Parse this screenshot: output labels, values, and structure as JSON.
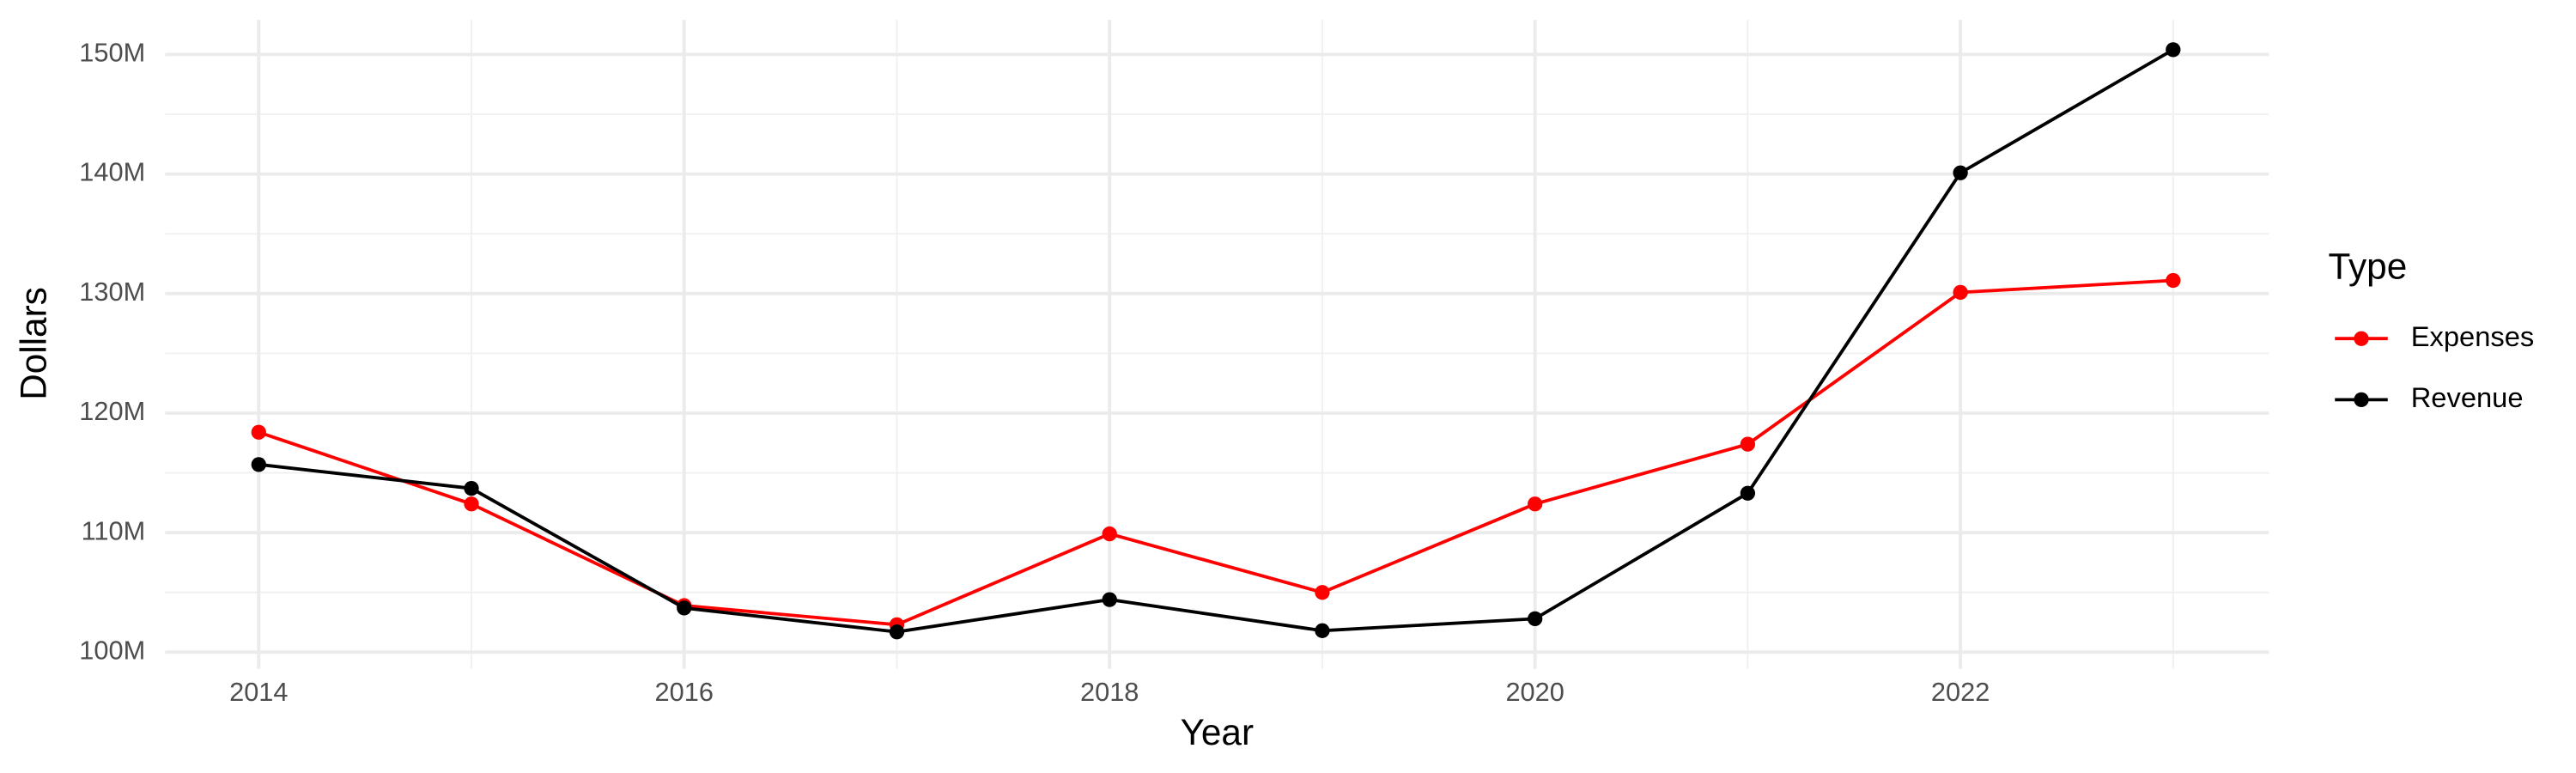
{
  "chart_data": {
    "type": "line",
    "x_label": "Year",
    "y_label": "Dollars",
    "legend_title": "Type",
    "legend_position": "right",
    "grid": true,
    "x": [
      2014,
      2015,
      2016,
      2017,
      2018,
      2019,
      2020,
      2021,
      2022,
      2023
    ],
    "xlim": [
      2013.56,
      2023.45
    ],
    "xticks": [
      2014,
      2016,
      2018,
      2020,
      2022
    ],
    "ylim": [
      98600000,
      152900000
    ],
    "yticks": [
      {
        "value": 100000000,
        "label": "100M"
      },
      {
        "value": 110000000,
        "label": "110M"
      },
      {
        "value": 120000000,
        "label": "120M"
      },
      {
        "value": 130000000,
        "label": "130M"
      },
      {
        "value": 140000000,
        "label": "140M"
      },
      {
        "value": 150000000,
        "label": "150M"
      }
    ],
    "series": [
      {
        "name": "Expenses",
        "color": "#ff0000",
        "values": [
          118400000,
          112400000,
          103900000,
          102300000,
          109900000,
          105000000,
          112400000,
          117400000,
          130100000,
          131100000
        ]
      },
      {
        "name": "Revenue",
        "color": "#000000",
        "values": [
          115700000,
          113700000,
          103700000,
          101700000,
          104400000,
          101800000,
          102800000,
          113300000,
          140100000,
          150400000
        ]
      }
    ]
  }
}
